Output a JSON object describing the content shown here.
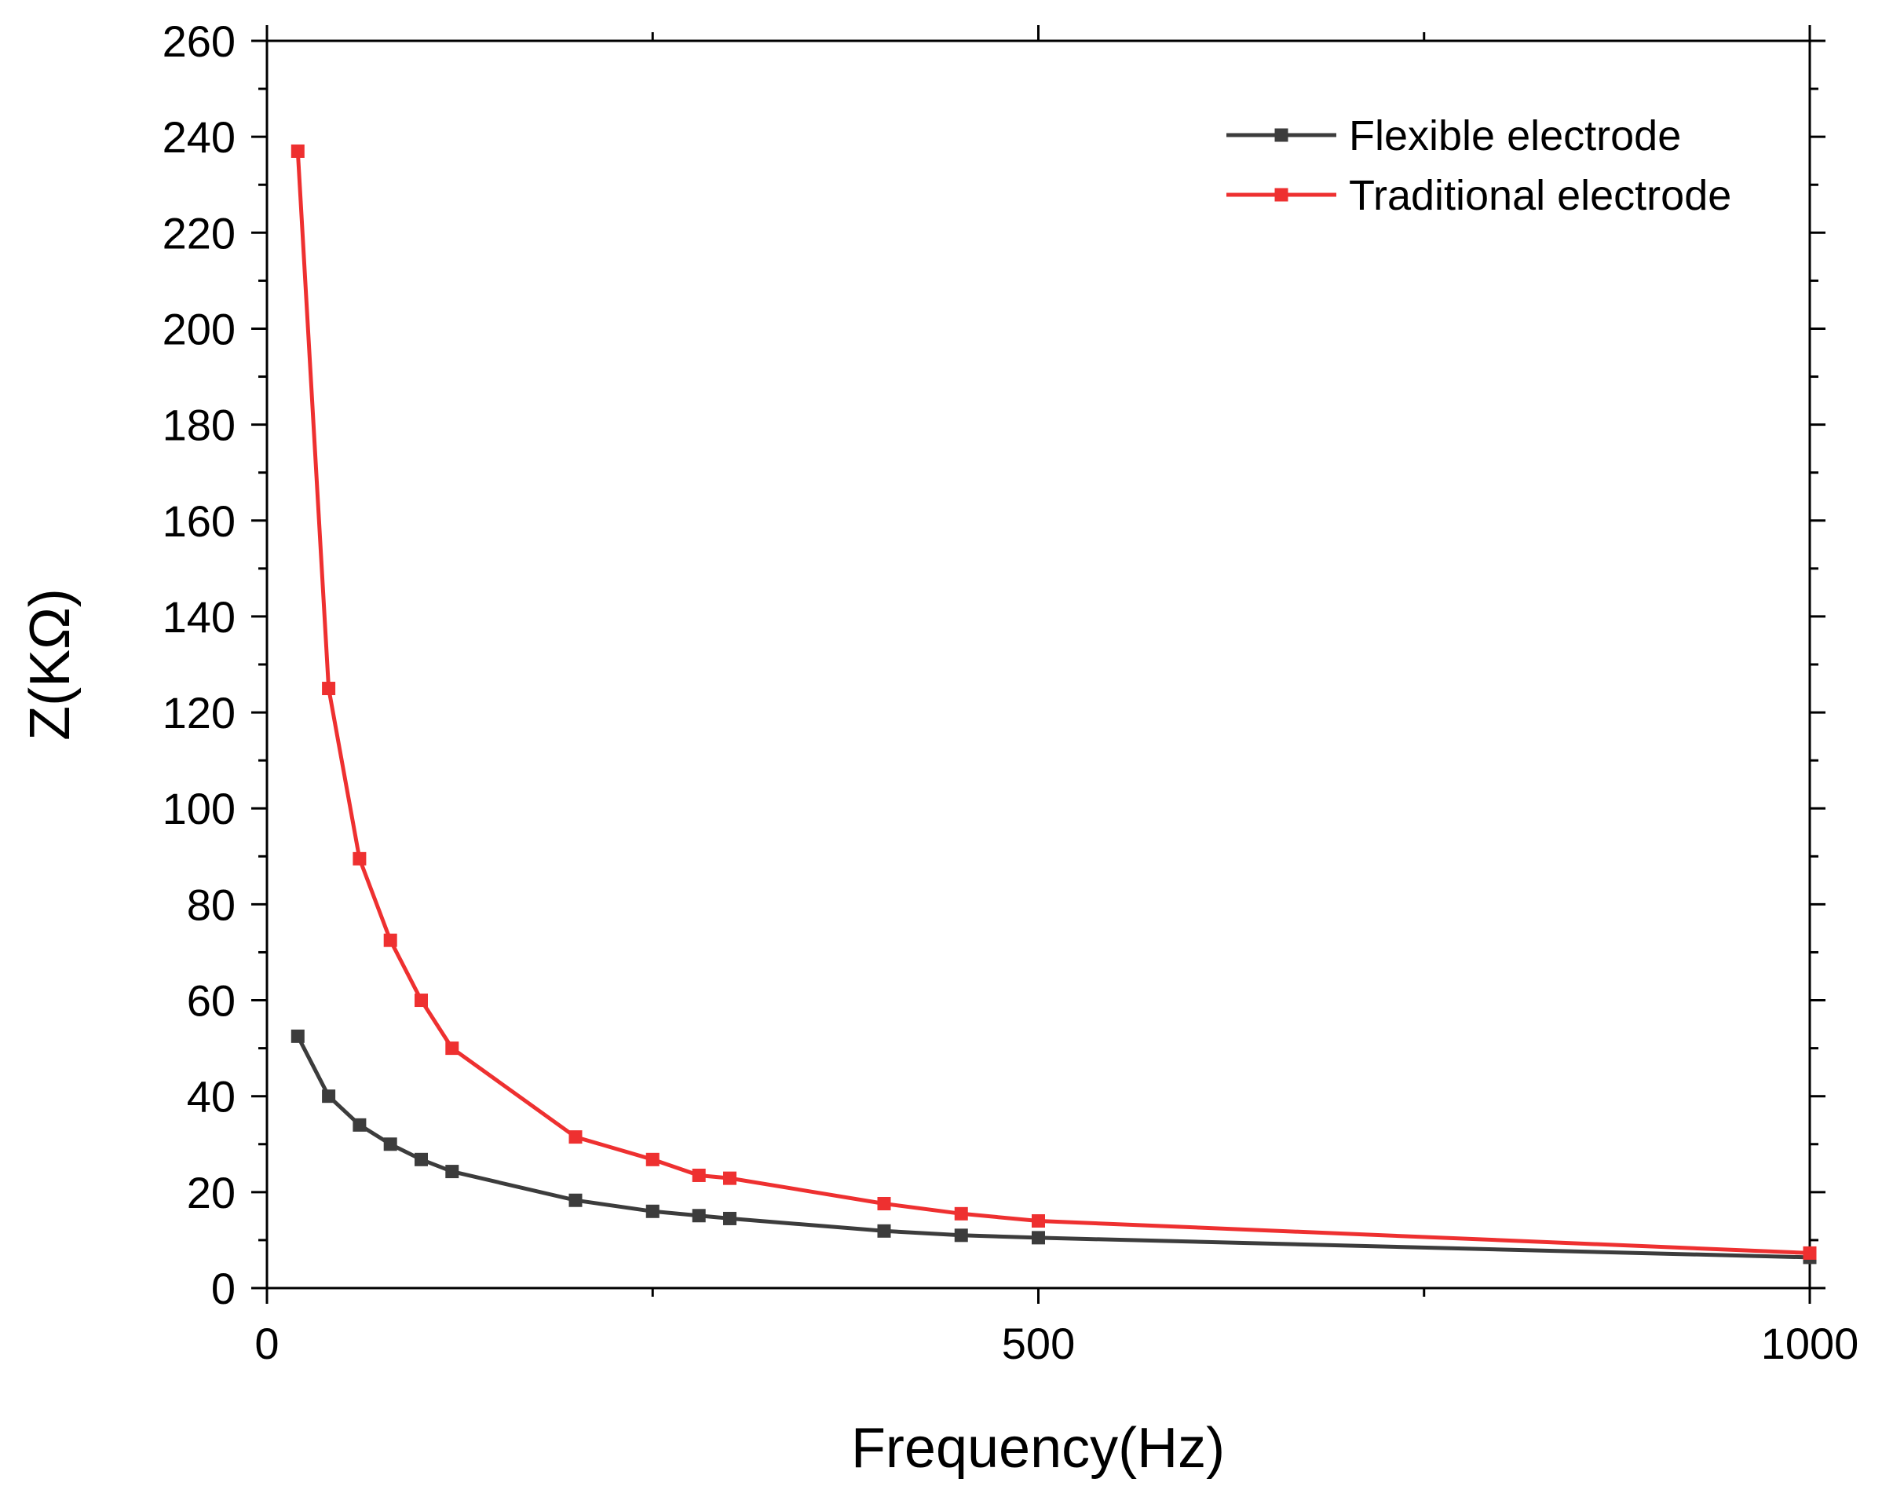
{
  "chart_data": {
    "type": "line",
    "title": "",
    "xlabel": "Frequency(Hz)",
    "ylabel": "Z(KΩ)",
    "xlim": [
      0,
      1000
    ],
    "ylim": [
      0,
      260
    ],
    "x_ticks": [
      0,
      500,
      1000
    ],
    "y_ticks": [
      0,
      20,
      40,
      60,
      80,
      100,
      120,
      140,
      160,
      180,
      200,
      220,
      240,
      260
    ],
    "grid": false,
    "legend_position": "top-right",
    "series": [
      {
        "name": "Flexible electrode",
        "color": "#3c3c3c",
        "marker": "square",
        "points": [
          [
            20,
            52.5
          ],
          [
            40,
            40
          ],
          [
            60,
            34
          ],
          [
            80,
            30
          ],
          [
            100,
            26.8
          ],
          [
            120,
            24.3
          ],
          [
            200,
            18.3
          ],
          [
            250,
            16
          ],
          [
            280,
            15.1
          ],
          [
            300,
            14.5
          ],
          [
            400,
            11.9
          ],
          [
            450,
            11
          ],
          [
            500,
            10.5
          ],
          [
            1000,
            6.4
          ]
        ]
      },
      {
        "name": "Traditional electrode",
        "color": "#ee3030",
        "marker": "square",
        "points": [
          [
            20,
            237
          ],
          [
            40,
            125
          ],
          [
            60,
            89.5
          ],
          [
            80,
            72.5
          ],
          [
            100,
            60
          ],
          [
            120,
            50
          ],
          [
            200,
            31.5
          ],
          [
            250,
            26.8
          ],
          [
            280,
            23.5
          ],
          [
            300,
            22.9
          ],
          [
            400,
            17.6
          ],
          [
            450,
            15.5
          ],
          [
            500,
            14
          ],
          [
            1000,
            7.3
          ]
        ]
      }
    ]
  }
}
